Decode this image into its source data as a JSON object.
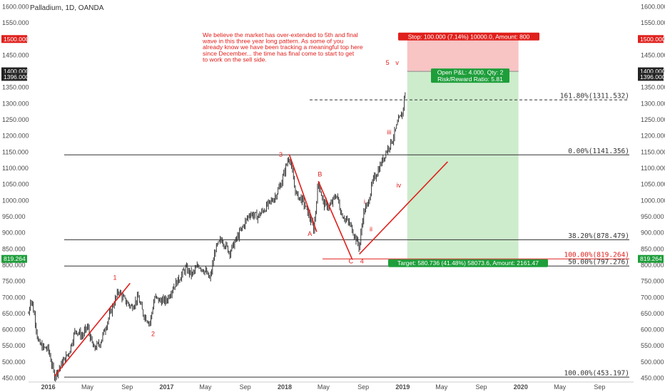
{
  "header": {
    "symbol_title": "Palladium, 1D, OANDA"
  },
  "colors": {
    "red": "#e0201c",
    "green": "#1e9e3a",
    "profit_zone": "#cdeccc",
    "loss_zone": "#f8c4c4",
    "candle": "#222222"
  },
  "chart_data": {
    "type": "candlestick",
    "title": "Palladium, 1D, OANDA",
    "y_ticks": [
      "450.000",
      "500.000",
      "550.000",
      "600.000",
      "650.000",
      "700.000",
      "750.000",
      "800.000",
      "850.000",
      "900.000",
      "950.000",
      "1000.000",
      "1050.000",
      "1100.000",
      "1150.000",
      "1200.000",
      "1250.000",
      "1300.000",
      "1350.000",
      "1400.000",
      "1450.000",
      "1500.000",
      "1550.000",
      "1600.000"
    ],
    "ylim": [
      438,
      1612
    ],
    "x_ticks": [
      "2016",
      "May",
      "Sep",
      "2017",
      "May",
      "Sep",
      "2018",
      "May",
      "Sep",
      "2019",
      "May",
      "Sep",
      "2020",
      "May",
      "Sep"
    ],
    "price_path": [
      [
        "2015-11-01",
        650
      ],
      [
        "2015-11-08",
        700
      ],
      [
        "2015-11-20",
        640
      ],
      [
        "2015-12-01",
        560
      ],
      [
        "2015-12-15",
        545
      ],
      [
        "2016-01-01",
        540
      ],
      [
        "2016-01-20",
        456
      ],
      [
        "2016-02-15",
        500
      ],
      [
        "2016-03-05",
        530
      ],
      [
        "2016-03-25",
        600
      ],
      [
        "2016-04-15",
        580
      ],
      [
        "2016-05-01",
        610
      ],
      [
        "2016-05-20",
        540
      ],
      [
        "2016-06-10",
        560
      ],
      [
        "2016-07-10",
        650
      ],
      [
        "2016-08-05",
        720
      ],
      [
        "2016-08-25",
        690
      ],
      [
        "2016-09-15",
        670
      ],
      [
        "2016-10-05",
        700
      ],
      [
        "2016-10-20",
        650
      ],
      [
        "2016-11-10",
        620
      ],
      [
        "2016-11-25",
        700
      ],
      [
        "2016-12-10",
        690
      ],
      [
        "2016-12-31",
        690
      ],
      [
        "2017-01-20",
        730
      ],
      [
        "2017-02-10",
        760
      ],
      [
        "2017-03-01",
        790
      ],
      [
        "2017-03-20",
        770
      ],
      [
        "2017-04-10",
        800
      ],
      [
        "2017-05-01",
        780
      ],
      [
        "2017-05-15",
        755
      ],
      [
        "2017-06-01",
        850
      ],
      [
        "2017-06-20",
        880
      ],
      [
        "2017-07-15",
        840
      ],
      [
        "2017-08-15",
        900
      ],
      [
        "2017-09-15",
        960
      ],
      [
        "2017-10-10",
        950
      ],
      [
        "2017-11-05",
        980
      ],
      [
        "2017-12-01",
        1010
      ],
      [
        "2017-12-20",
        1050
      ],
      [
        "2018-01-15",
        1140
      ],
      [
        "2018-02-05",
        1020
      ],
      [
        "2018-02-25",
        1000
      ],
      [
        "2018-03-15",
        960
      ],
      [
        "2018-04-01",
        910
      ],
      [
        "2018-04-15",
        1060
      ],
      [
        "2018-05-01",
        990
      ],
      [
        "2018-05-20",
        980
      ],
      [
        "2018-06-10",
        1020
      ],
      [
        "2018-06-25",
        960
      ],
      [
        "2018-07-10",
        940
      ],
      [
        "2018-07-25",
        920
      ],
      [
        "2018-08-10",
        880
      ],
      [
        "2018-08-20",
        855
      ],
      [
        "2018-09-01",
        960
      ],
      [
        "2018-09-15",
        990
      ],
      [
        "2018-10-01",
        1060
      ],
      [
        "2018-10-20",
        1100
      ],
      [
        "2018-11-10",
        1150
      ],
      [
        "2018-12-01",
        1190
      ],
      [
        "2018-12-20",
        1250
      ],
      [
        "2018-12-31",
        1270
      ],
      [
        "2019-01-05",
        1310
      ],
      [
        "2019-01-10",
        1345
      ]
    ],
    "fib_levels": [
      {
        "label": "161.80%(1311.532)",
        "value": 1311.532,
        "dashed": true
      },
      {
        "label": "0.00%(1141.356)",
        "value": 1141.356
      },
      {
        "label": "38.20%(878.479)",
        "value": 878.479
      },
      {
        "label": "100.00%(819.264)",
        "value": 819.264,
        "color": "red"
      },
      {
        "label": "50.00%(797.276)",
        "value": 797.276
      },
      {
        "label": "100.00%(453.197)",
        "value": 453.197
      }
    ],
    "wave_labels": [
      {
        "label": "1",
        "date": "2016-07-25",
        "price": 755
      },
      {
        "label": "2",
        "date": "2016-11-20",
        "price": 580
      },
      {
        "label": "3",
        "date": "2017-12-20",
        "price": 1135
      },
      {
        "label": "A",
        "date": "2018-03-20",
        "price": 890
      },
      {
        "label": "B",
        "date": "2018-04-20",
        "price": 1075
      },
      {
        "label": "C",
        "date": "2018-07-25",
        "price": 805
      },
      {
        "label": "4",
        "date": "2018-08-28",
        "price": 805
      },
      {
        "label": "i",
        "date": "2018-09-05",
        "price": 990
      },
      {
        "label": "ii",
        "date": "2018-09-25",
        "price": 905
      },
      {
        "label": "iii",
        "date": "2018-11-20",
        "price": 1205
      },
      {
        "label": "iv",
        "date": "2018-12-20",
        "price": 1040
      },
      {
        "label": "5",
        "date": "2018-11-15",
        "price": 1420
      },
      {
        "label": "v",
        "date": "2018-12-15",
        "price": 1420
      }
    ],
    "trend_lines": [
      {
        "from": [
          "2016-01-20",
          456
        ],
        "to": [
          "2016-09-10",
          744
        ]
      },
      {
        "from": [
          "2018-01-15",
          1143
        ],
        "to": [
          "2018-04-10",
          903
        ]
      },
      {
        "from": [
          "2018-04-15",
          1060
        ],
        "to": [
          "2018-07-28",
          820
        ]
      },
      {
        "from": [
          "2018-08-20",
          834
        ],
        "to": [
          "2019-05-20",
          1120
        ]
      }
    ],
    "position": {
      "entry": 1400.0,
      "stop": 1500.0,
      "target": 819.264,
      "start_date": "2019-01-15",
      "end_date": "2019-12-25",
      "stop_label": "Stop: 100.000 (7.14%) 10000.0, Amount: 800",
      "target_label": "Target: 580.736 (41.48%) 58073.6, Amount: 2161.47",
      "pnl_line1": "Open P&L: 4.000, Qty: 2",
      "pnl_line2": "Risk/Reward Ratio: 5.81"
    },
    "price_tags": {
      "stop_price": "1500.000",
      "entry_price": "1400.000",
      "last_price": "1396.000",
      "target_price": "819.264"
    },
    "annotation": [
      "We believe the market has over-extended to 5th and final",
      "wave in this three year long pattern. As some of you",
      "already know we have been tracking a meaningful top here",
      "since December... the time has final come to start to get",
      "to work on the sell side."
    ]
  }
}
